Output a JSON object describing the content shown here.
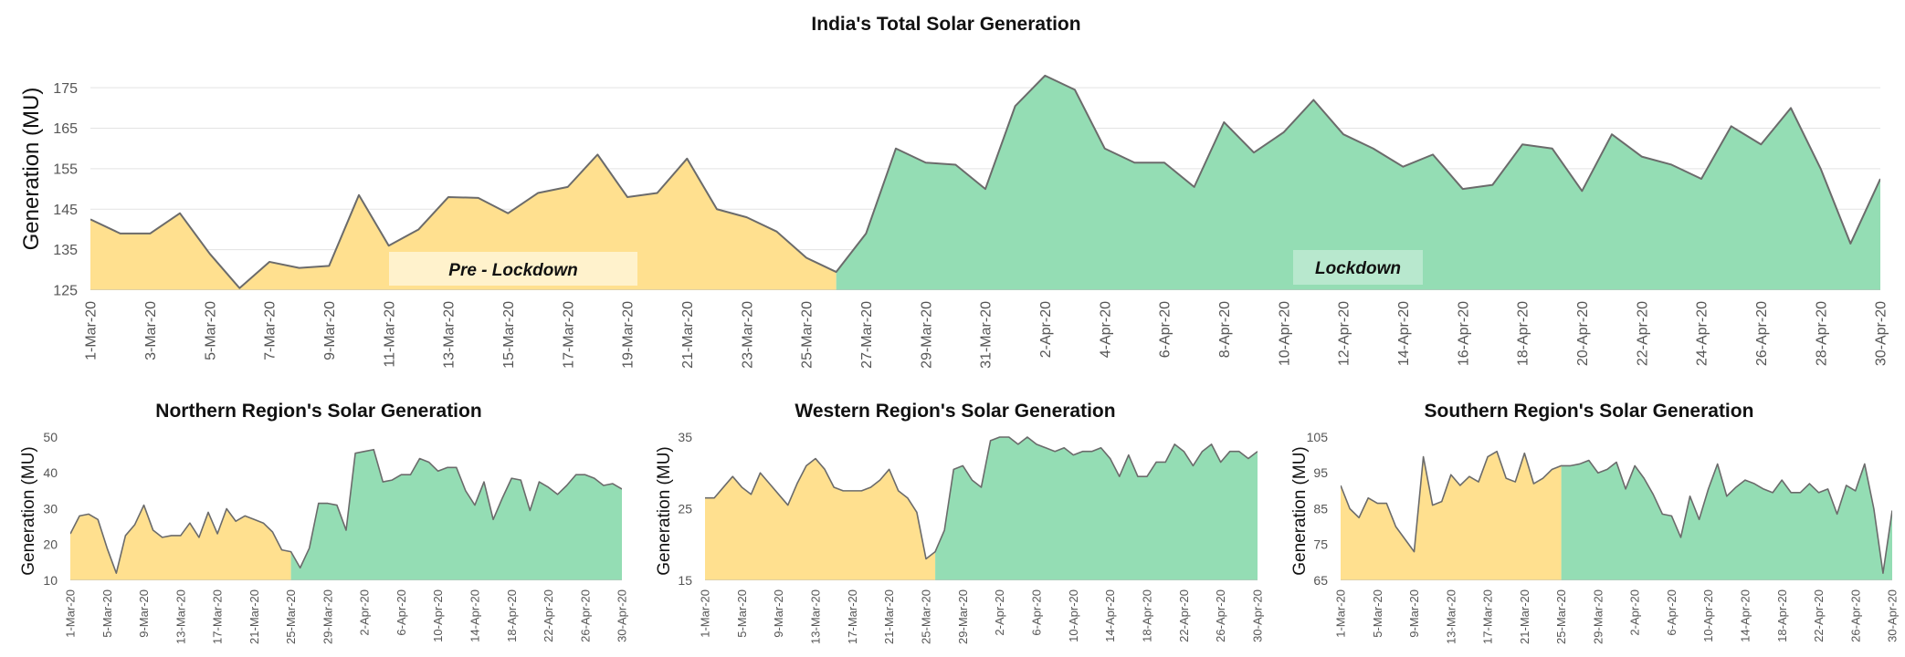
{
  "colors": {
    "pre_lockdown_fill": "#FFE08F",
    "lockdown_fill": "#94DDB4",
    "line": "#6B6B6B",
    "gridline": "#E3E3E3",
    "phase_label_bg": "#FFF2CC"
  },
  "chart_data": [
    {
      "type": "area",
      "title": "India's Total Solar Generation",
      "xlabel": "",
      "ylabel": "Generation (MU)",
      "ylim": [
        125,
        180
      ],
      "yticks": [
        125,
        135,
        145,
        155,
        165,
        175
      ],
      "grid": true,
      "x": [
        "1-Mar-20",
        "2-Mar-20",
        "3-Mar-20",
        "4-Mar-20",
        "5-Mar-20",
        "6-Mar-20",
        "7-Mar-20",
        "8-Mar-20",
        "9-Mar-20",
        "10-Mar-20",
        "11-Mar-20",
        "12-Mar-20",
        "13-Mar-20",
        "14-Mar-20",
        "15-Mar-20",
        "16-Mar-20",
        "17-Mar-20",
        "18-Mar-20",
        "19-Mar-20",
        "20-Mar-20",
        "21-Mar-20",
        "22-Mar-20",
        "23-Mar-20",
        "24-Mar-20",
        "25-Mar-20",
        "26-Mar-20",
        "27-Mar-20",
        "28-Mar-20",
        "29-Mar-20",
        "30-Mar-20",
        "31-Mar-20",
        "1-Apr-20",
        "2-Apr-20",
        "3-Apr-20",
        "4-Apr-20",
        "5-Apr-20",
        "6-Apr-20",
        "7-Apr-20",
        "8-Apr-20",
        "9-Apr-20",
        "10-Apr-20",
        "11-Apr-20",
        "12-Apr-20",
        "13-Apr-20",
        "14-Apr-20",
        "15-Apr-20",
        "16-Apr-20",
        "17-Apr-20",
        "18-Apr-20",
        "19-Apr-20",
        "20-Apr-20",
        "21-Apr-20",
        "22-Apr-20",
        "23-Apr-20",
        "24-Apr-20",
        "25-Apr-20",
        "26-Apr-20",
        "27-Apr-20",
        "28-Apr-20",
        "29-Apr-20",
        "30-Apr-20"
      ],
      "xtick_labels": [
        "1-Mar-20",
        "3-Mar-20",
        "5-Mar-20",
        "7-Mar-20",
        "9-Mar-20",
        "11-Mar-20",
        "13-Mar-20",
        "15-Mar-20",
        "17-Mar-20",
        "19-Mar-20",
        "21-Mar-20",
        "23-Mar-20",
        "25-Mar-20",
        "27-Mar-20",
        "29-Mar-20",
        "31-Mar-20",
        "2-Apr-20",
        "4-Apr-20",
        "6-Apr-20",
        "8-Apr-20",
        "10-Apr-20",
        "12-Apr-20",
        "14-Apr-20",
        "16-Apr-20",
        "18-Apr-20",
        "20-Apr-20",
        "22-Apr-20",
        "24-Apr-20",
        "26-Apr-20",
        "28-Apr-20",
        "30-Apr-20"
      ],
      "values": [
        142.5,
        139,
        139,
        144,
        134,
        125.5,
        132,
        130.5,
        131,
        148.5,
        136,
        140,
        148,
        147.8,
        144,
        149,
        150.5,
        158.5,
        148,
        149,
        157.5,
        145,
        143,
        139.5,
        133,
        129.5,
        139,
        160,
        156.5,
        156,
        150,
        170.5,
        178,
        174.5,
        160,
        156.5,
        156.5,
        150.5,
        166.5,
        159,
        164,
        172,
        163.5,
        160,
        155.5,
        158.5,
        150,
        151,
        161,
        160,
        149.5,
        163.5,
        158,
        156,
        152.5,
        165.5,
        161,
        170,
        155,
        136.5,
        152.5
      ],
      "lockdown_start_index": 25,
      "phase_labels": [
        "Pre - Lockdown",
        "Lockdown"
      ]
    },
    {
      "type": "area",
      "title": "Northern Region's Solar Generation",
      "xlabel": "",
      "ylabel": "Generation (MU)",
      "ylim": [
        10,
        50
      ],
      "yticks": [
        10,
        20,
        30,
        40,
        50
      ],
      "grid": false,
      "x": [
        "1-Mar-20",
        "2-Mar-20",
        "3-Mar-20",
        "4-Mar-20",
        "5-Mar-20",
        "6-Mar-20",
        "7-Mar-20",
        "8-Mar-20",
        "9-Mar-20",
        "10-Mar-20",
        "11-Mar-20",
        "12-Mar-20",
        "13-Mar-20",
        "14-Mar-20",
        "15-Mar-20",
        "16-Mar-20",
        "17-Mar-20",
        "18-Mar-20",
        "19-Mar-20",
        "20-Mar-20",
        "21-Mar-20",
        "22-Mar-20",
        "23-Mar-20",
        "24-Mar-20",
        "25-Mar-20",
        "26-Mar-20",
        "27-Mar-20",
        "28-Mar-20",
        "29-Mar-20",
        "30-Mar-20",
        "31-Mar-20",
        "1-Apr-20",
        "2-Apr-20",
        "3-Apr-20",
        "4-Apr-20",
        "5-Apr-20",
        "6-Apr-20",
        "7-Apr-20",
        "8-Apr-20",
        "9-Apr-20",
        "10-Apr-20",
        "11-Apr-20",
        "12-Apr-20",
        "13-Apr-20",
        "14-Apr-20",
        "15-Apr-20",
        "16-Apr-20",
        "17-Apr-20",
        "18-Apr-20",
        "19-Apr-20",
        "20-Apr-20",
        "21-Apr-20",
        "22-Apr-20",
        "23-Apr-20",
        "24-Apr-20",
        "25-Apr-20",
        "26-Apr-20",
        "27-Apr-20",
        "28-Apr-20",
        "29-Apr-20",
        "30-Apr-20"
      ],
      "xtick_labels": [
        "1-Mar-20",
        "5-Mar-20",
        "9-Mar-20",
        "13-Mar-20",
        "17-Mar-20",
        "21-Mar-20",
        "25-Mar-20",
        "29-Mar-20",
        "2-Apr-20",
        "6-Apr-20",
        "10-Apr-20",
        "14-Apr-20",
        "18-Apr-20",
        "22-Apr-20",
        "26-Apr-20",
        "30-Apr-20"
      ],
      "values": [
        23,
        28,
        28.5,
        27,
        19,
        12,
        22.5,
        25.5,
        31,
        24,
        22,
        22.5,
        22.5,
        26,
        22,
        29,
        23,
        30,
        26.5,
        28,
        27,
        26,
        23.5,
        18.5,
        18,
        13.5,
        19,
        31.5,
        31.5,
        31,
        24,
        45.5,
        46,
        46.5,
        37.5,
        38,
        39.5,
        39.5,
        44,
        43,
        40.5,
        41.5,
        41.5,
        35,
        31,
        37.5,
        27,
        33,
        38.5,
        38,
        29.5,
        37.5,
        36,
        34,
        36.5,
        39.5,
        39.5,
        38.5,
        36.5,
        37,
        35.5
      ],
      "lockdown_start_index": 24
    },
    {
      "type": "area",
      "title": "Western Region's Solar Generation",
      "xlabel": "",
      "ylabel": "Generation (MU)",
      "ylim": [
        15,
        35
      ],
      "yticks": [
        15,
        25,
        35
      ],
      "grid": false,
      "x": [
        "1-Mar-20",
        "2-Mar-20",
        "3-Mar-20",
        "4-Mar-20",
        "5-Mar-20",
        "6-Mar-20",
        "7-Mar-20",
        "8-Mar-20",
        "9-Mar-20",
        "10-Mar-20",
        "11-Mar-20",
        "12-Mar-20",
        "13-Mar-20",
        "14-Mar-20",
        "15-Mar-20",
        "16-Mar-20",
        "17-Mar-20",
        "18-Mar-20",
        "19-Mar-20",
        "20-Mar-20",
        "21-Mar-20",
        "22-Mar-20",
        "23-Mar-20",
        "24-Mar-20",
        "25-Mar-20",
        "26-Mar-20",
        "27-Mar-20",
        "28-Mar-20",
        "29-Mar-20",
        "30-Mar-20",
        "31-Mar-20",
        "1-Apr-20",
        "2-Apr-20",
        "3-Apr-20",
        "4-Apr-20",
        "5-Apr-20",
        "6-Apr-20",
        "7-Apr-20",
        "8-Apr-20",
        "9-Apr-20",
        "10-Apr-20",
        "11-Apr-20",
        "12-Apr-20",
        "13-Apr-20",
        "14-Apr-20",
        "15-Apr-20",
        "16-Apr-20",
        "17-Apr-20",
        "18-Apr-20",
        "19-Apr-20",
        "20-Apr-20",
        "21-Apr-20",
        "22-Apr-20",
        "23-Apr-20",
        "24-Apr-20",
        "25-Apr-20",
        "26-Apr-20",
        "27-Apr-20",
        "28-Apr-20",
        "29-Apr-20",
        "30-Apr-20"
      ],
      "xtick_labels": [
        "1-Mar-20",
        "5-Mar-20",
        "9-Mar-20",
        "13-Mar-20",
        "17-Mar-20",
        "21-Mar-20",
        "25-Mar-20",
        "29-Mar-20",
        "2-Apr-20",
        "6-Apr-20",
        "10-Apr-20",
        "14-Apr-20",
        "18-Apr-20",
        "22-Apr-20",
        "26-Apr-20",
        "30-Apr-20"
      ],
      "values": [
        26.5,
        26.5,
        28,
        29.5,
        28,
        27,
        30,
        28.5,
        27,
        25.5,
        28.5,
        31,
        32,
        30.5,
        28,
        27.5,
        27.5,
        27.5,
        28,
        29,
        30.5,
        27.5,
        26.5,
        24.5,
        18,
        19,
        22,
        30.5,
        31,
        29,
        28,
        34.5,
        35,
        35,
        34,
        35,
        34,
        33.5,
        33,
        33.5,
        32.5,
        33,
        33,
        33.5,
        32,
        29.5,
        32.5,
        29.5,
        29.5,
        31.5,
        31.5,
        34,
        33,
        31,
        33,
        34,
        31.5,
        33,
        33,
        32,
        33
      ],
      "lockdown_start_index": 25
    },
    {
      "type": "area",
      "title": "Southern Region's Solar Generation",
      "xlabel": "",
      "ylabel": "Generation (MU)",
      "ylim": [
        65,
        105
      ],
      "yticks": [
        65,
        75,
        85,
        95,
        105
      ],
      "grid": false,
      "x": [
        "1-Mar-20",
        "2-Mar-20",
        "3-Mar-20",
        "4-Mar-20",
        "5-Mar-20",
        "6-Mar-20",
        "7-Mar-20",
        "8-Mar-20",
        "9-Mar-20",
        "10-Mar-20",
        "11-Mar-20",
        "12-Mar-20",
        "13-Mar-20",
        "14-Mar-20",
        "15-Mar-20",
        "16-Mar-20",
        "17-Mar-20",
        "18-Mar-20",
        "19-Mar-20",
        "20-Mar-20",
        "21-Mar-20",
        "22-Mar-20",
        "23-Mar-20",
        "24-Mar-20",
        "25-Mar-20",
        "26-Mar-20",
        "27-Mar-20",
        "28-Mar-20",
        "29-Mar-20",
        "30-Mar-20",
        "31-Mar-20",
        "1-Apr-20",
        "2-Apr-20",
        "3-Apr-20",
        "4-Apr-20",
        "5-Apr-20",
        "6-Apr-20",
        "7-Apr-20",
        "8-Apr-20",
        "9-Apr-20",
        "10-Apr-20",
        "11-Apr-20",
        "12-Apr-20",
        "13-Apr-20",
        "14-Apr-20",
        "15-Apr-20",
        "16-Apr-20",
        "17-Apr-20",
        "18-Apr-20",
        "19-Apr-20",
        "20-Apr-20",
        "21-Apr-20",
        "22-Apr-20",
        "23-Apr-20",
        "24-Apr-20",
        "25-Apr-20",
        "26-Apr-20",
        "27-Apr-20",
        "28-Apr-20",
        "29-Apr-20",
        "30-Apr-20"
      ],
      "xtick_labels": [
        "1-Mar-20",
        "5-Mar-20",
        "9-Mar-20",
        "13-Mar-20",
        "17-Mar-20",
        "21-Mar-20",
        "25-Mar-20",
        "29-Mar-20",
        "2-Apr-20",
        "6-Apr-20",
        "10-Apr-20",
        "14-Apr-20",
        "18-Apr-20",
        "22-Apr-20",
        "26-Apr-20",
        "30-Apr-20"
      ],
      "values": [
        91.5,
        85,
        82.5,
        88,
        86.5,
        86.5,
        80,
        76.5,
        73,
        99.5,
        86,
        87,
        94.5,
        91.5,
        94,
        92.5,
        99.5,
        101,
        93.5,
        92.5,
        100.5,
        92,
        93.5,
        96,
        97,
        97,
        97.5,
        98.5,
        95,
        96,
        98,
        90.5,
        97,
        93.5,
        89,
        83.5,
        83,
        77,
        88.5,
        82,
        90.5,
        97.5,
        88.5,
        91,
        93,
        92,
        90.5,
        89.5,
        93,
        89.5,
        89.5,
        92,
        89.5,
        90.5,
        83.5,
        91.5,
        90,
        97.5,
        85,
        67,
        84.5
      ],
      "lockdown_start_index": 24
    }
  ]
}
